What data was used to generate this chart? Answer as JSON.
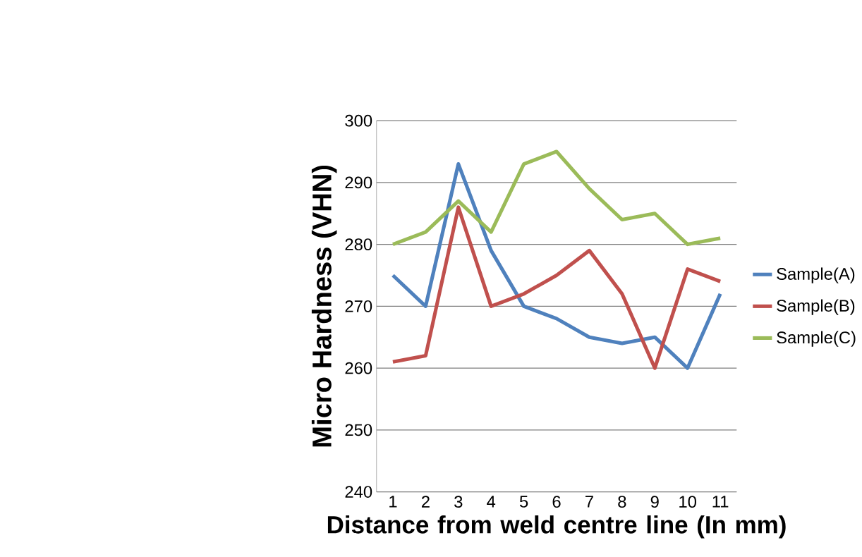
{
  "chart_data": {
    "type": "line",
    "xlabel": "Distance from weld centre line (In mm)",
    "ylabel": "Micro Hardness (VHN)",
    "categories": [
      "1",
      "2",
      "3",
      "4",
      "5",
      "6",
      "7",
      "8",
      "9",
      "10",
      "11"
    ],
    "series": [
      {
        "name": "Sample(A)",
        "color": "#4f81bd",
        "values": [
          275,
          270,
          293,
          279,
          270,
          268,
          265,
          264,
          265,
          260,
          272
        ]
      },
      {
        "name": "Sample(B)",
        "color": "#c0504d",
        "values": [
          261,
          262,
          286,
          270,
          272,
          275,
          279,
          272,
          260,
          276,
          274
        ]
      },
      {
        "name": "Sample(C)",
        "color": "#9bbb59",
        "values": [
          280,
          282,
          287,
          282,
          293,
          295,
          289,
          284,
          285,
          280,
          281
        ]
      }
    ],
    "ylim": [
      240,
      300
    ],
    "yticks": [
      240,
      250,
      260,
      270,
      280,
      290,
      300
    ],
    "grid": "y",
    "legend": "right",
    "marker": "none",
    "line_style": "solid"
  }
}
